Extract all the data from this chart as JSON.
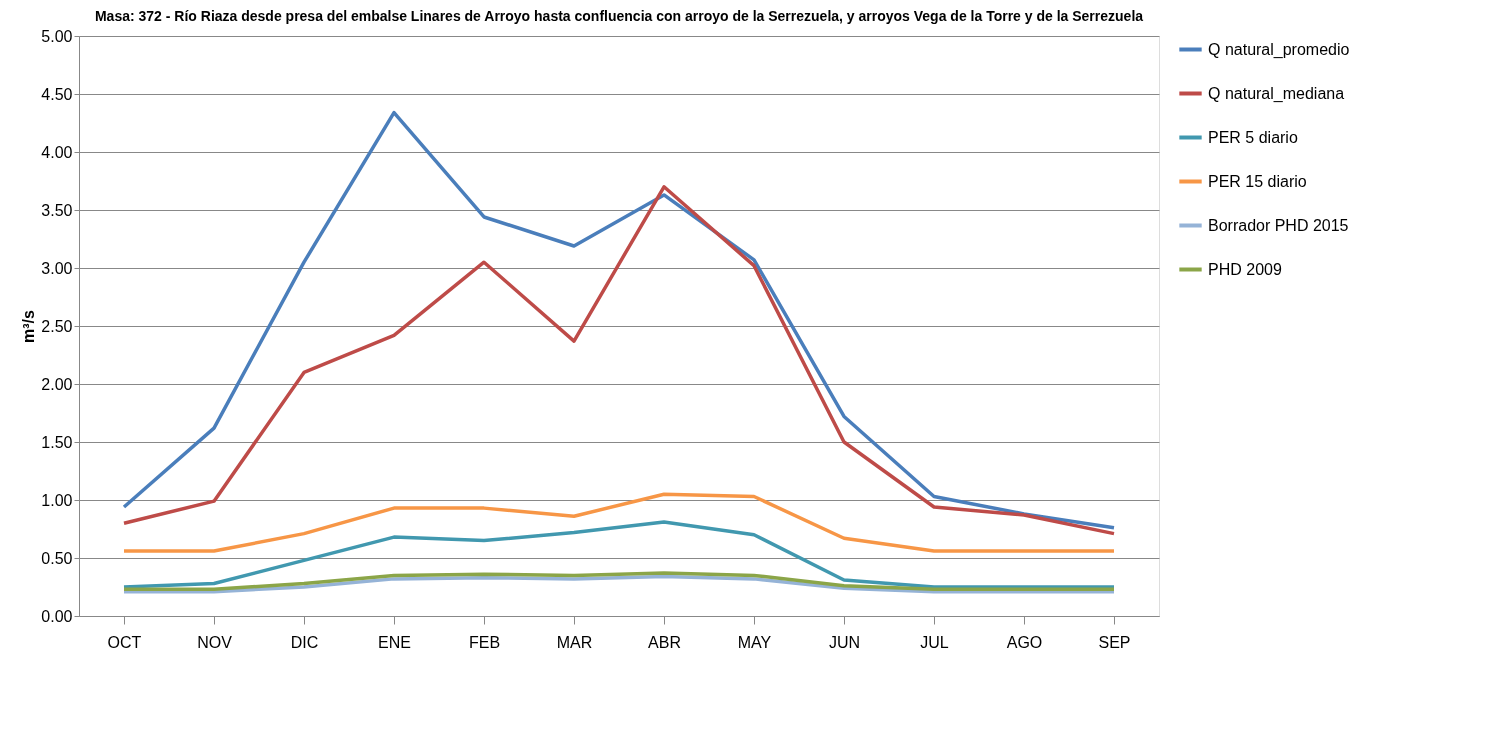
{
  "chart_data": {
    "type": "line",
    "title": "Masa: 372 - Río Riaza desde presa del embalse Linares de Arroyo hasta confluencia con arroyo de la Serrezuela, y arroyos Vega de la Torre y de la Serrezuela",
    "ylabel": "m³/s",
    "categories": [
      "OCT",
      "NOV",
      "DIC",
      "ENE",
      "FEB",
      "MAR",
      "ABR",
      "MAY",
      "JUN",
      "JUL",
      "AGO",
      "SEP"
    ],
    "series": [
      {
        "name": "Q natural_promedio",
        "color": "#4a7ebb",
        "values": [
          0.94,
          1.62,
          3.05,
          4.34,
          3.44,
          3.19,
          3.63,
          3.07,
          1.72,
          1.03,
          0.88,
          0.76
        ]
      },
      {
        "name": "Q natural_mediana",
        "color": "#be4b48",
        "values": [
          0.8,
          0.99,
          2.1,
          2.42,
          3.05,
          2.37,
          3.7,
          3.02,
          1.5,
          0.94,
          0.87,
          0.71
        ]
      },
      {
        "name": "PER 5 diario",
        "color": "#4198af",
        "values": [
          0.25,
          0.28,
          0.48,
          0.68,
          0.65,
          0.72,
          0.81,
          0.7,
          0.31,
          0.25,
          0.25,
          0.25
        ]
      },
      {
        "name": "PER 15 diario",
        "color": "#f79646",
        "values": [
          0.56,
          0.56,
          0.71,
          0.93,
          0.93,
          0.86,
          1.05,
          1.03,
          0.67,
          0.56,
          0.56,
          0.56
        ]
      },
      {
        "name": "Borrador PHD 2015",
        "color": "#95b3d7",
        "values": [
          0.21,
          0.21,
          0.25,
          0.32,
          0.33,
          0.32,
          0.34,
          0.32,
          0.24,
          0.21,
          0.21,
          0.21
        ]
      },
      {
        "name": "PHD 2009",
        "color": "#8ba548",
        "values": [
          0.23,
          0.23,
          0.28,
          0.35,
          0.36,
          0.35,
          0.37,
          0.35,
          0.26,
          0.23,
          0.23,
          0.23
        ]
      }
    ],
    "ylim": [
      0,
      5
    ],
    "yticks": [
      {
        "value": 0,
        "label": "0.00"
      },
      {
        "value": 0.5,
        "label": "0.50"
      },
      {
        "value": 1,
        "label": "1.00"
      },
      {
        "value": 1.5,
        "label": "1.50"
      },
      {
        "value": 2,
        "label": "2.00"
      },
      {
        "value": 2.5,
        "label": "2.50"
      },
      {
        "value": 3,
        "label": "3.00"
      },
      {
        "value": 3.5,
        "label": "3.50"
      },
      {
        "value": 4,
        "label": "4.00"
      },
      {
        "value": 4.5,
        "label": "4.50"
      },
      {
        "value": 5,
        "label": "5.00"
      }
    ],
    "grid": "y",
    "legend": "right",
    "marker": "none",
    "line_style": "solid"
  }
}
